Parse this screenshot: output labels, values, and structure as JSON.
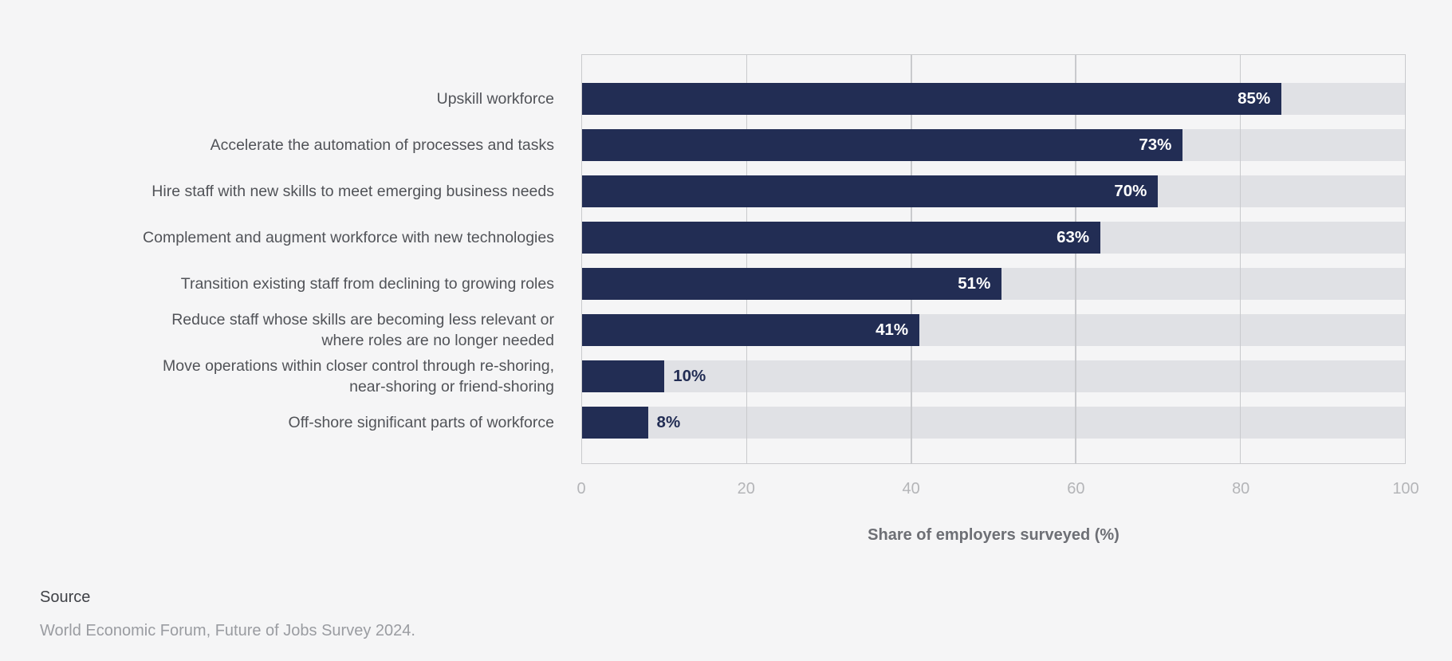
{
  "page": {
    "background_color": "#f5f5f6"
  },
  "chart_data": {
    "type": "bar",
    "orientation": "horizontal",
    "title": "",
    "xlabel": "Share of employers surveyed (%)",
    "ylabel": "",
    "xlim": [
      0,
      100
    ],
    "x_ticks": [
      0,
      20,
      40,
      60,
      80,
      100
    ],
    "grid": true,
    "legend": "none",
    "categories": [
      "Upskill workforce",
      "Accelerate the automation of processes and tasks",
      "Hire staff with new skills to meet emerging business needs",
      "Complement and augment workforce with new technologies",
      "Transition existing staff from declining to growing roles",
      "Reduce staff whose skills are becoming less relevant or\nwhere roles are no longer needed",
      "Move operations within closer control through re-shoring,\nnear-shoring or friend-shoring",
      "Off-shore significant parts of workforce"
    ],
    "values": [
      85,
      73,
      70,
      63,
      51,
      41,
      10,
      8
    ],
    "value_labels": [
      "85%",
      "73%",
      "70%",
      "63%",
      "51%",
      "41%",
      "10%",
      "8%"
    ],
    "bar_color": "#222d54",
    "track_color": "#e0e1e5",
    "grid_color": "#c9cacd",
    "inside_label_color": "#ffffff",
    "outside_label_color": "#222d54",
    "outside_label_threshold": 20
  },
  "source": {
    "title": "Source",
    "text": "World Economic Forum, Future of Jobs Survey 2024."
  }
}
